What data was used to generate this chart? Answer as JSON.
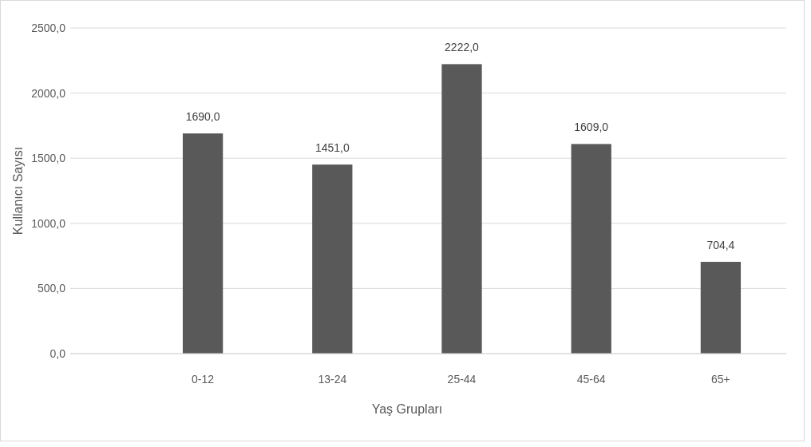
{
  "chart_data": {
    "type": "bar",
    "xlabel": "Yaş Grupları",
    "ylabel": "Kullanıcı Sayısı",
    "categories": [
      "0-12",
      "13-24",
      "25-44",
      "45-64",
      "65+"
    ],
    "values": [
      1690,
      1451,
      2222,
      1609,
      704.4
    ],
    "value_labels": [
      "1690,0",
      "1451,0",
      "2222,0",
      "1609,0",
      "704,4"
    ],
    "color": "#595959",
    "ylim": [
      0,
      2500
    ],
    "yticks": [
      {
        "value": 0,
        "label": "0,0"
      },
      {
        "value": 500,
        "label": "500,0"
      },
      {
        "value": 1000,
        "label": "1000,0"
      },
      {
        "value": 1500,
        "label": "1500,0"
      },
      {
        "value": 2000,
        "label": "2000,0"
      },
      {
        "value": 2500,
        "label": "2500,0"
      }
    ],
    "grid": "y"
  }
}
